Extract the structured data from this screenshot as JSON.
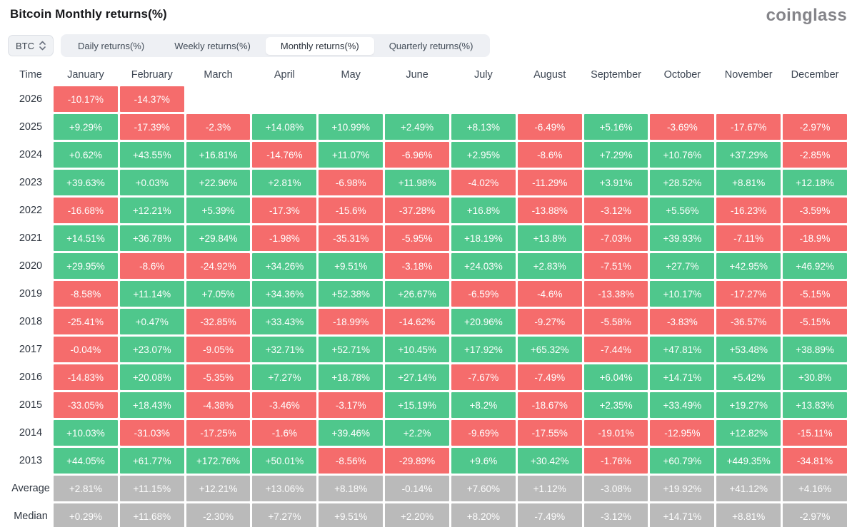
{
  "header": {
    "title": "Bitcoin Monthly returns(%)",
    "logo": "coinglass"
  },
  "controls": {
    "symbol_select": {
      "value": "BTC"
    },
    "tabs": [
      {
        "label": "Daily returns(%)",
        "active": false
      },
      {
        "label": "Weekly returns(%)",
        "active": false
      },
      {
        "label": "Monthly returns(%)",
        "active": true
      },
      {
        "label": "Quarterly returns(%)",
        "active": false
      }
    ]
  },
  "colors": {
    "positive": "#4fc78c",
    "negative": "#f56c6c",
    "summary": "#bababa"
  },
  "chart_data": {
    "type": "heatmap",
    "title": "Bitcoin Monthly returns(%)",
    "columns": [
      "Time",
      "January",
      "February",
      "March",
      "April",
      "May",
      "June",
      "July",
      "August",
      "September",
      "October",
      "November",
      "December"
    ],
    "rows": [
      {
        "label": "2026",
        "summary": false,
        "values": [
          "-10.17%",
          "-14.37%",
          "",
          "",
          "",
          "",
          "",
          "",
          "",
          "",
          "",
          ""
        ]
      },
      {
        "label": "2025",
        "summary": false,
        "values": [
          "+9.29%",
          "-17.39%",
          "-2.3%",
          "+14.08%",
          "+10.99%",
          "+2.49%",
          "+8.13%",
          "-6.49%",
          "+5.16%",
          "-3.69%",
          "-17.67%",
          "-2.97%"
        ]
      },
      {
        "label": "2024",
        "summary": false,
        "values": [
          "+0.62%",
          "+43.55%",
          "+16.81%",
          "-14.76%",
          "+11.07%",
          "-6.96%",
          "+2.95%",
          "-8.6%",
          "+7.29%",
          "+10.76%",
          "+37.29%",
          "-2.85%"
        ]
      },
      {
        "label": "2023",
        "summary": false,
        "values": [
          "+39.63%",
          "+0.03%",
          "+22.96%",
          "+2.81%",
          "-6.98%",
          "+11.98%",
          "-4.02%",
          "-11.29%",
          "+3.91%",
          "+28.52%",
          "+8.81%",
          "+12.18%"
        ]
      },
      {
        "label": "2022",
        "summary": false,
        "values": [
          "-16.68%",
          "+12.21%",
          "+5.39%",
          "-17.3%",
          "-15.6%",
          "-37.28%",
          "+16.8%",
          "-13.88%",
          "-3.12%",
          "+5.56%",
          "-16.23%",
          "-3.59%"
        ]
      },
      {
        "label": "2021",
        "summary": false,
        "values": [
          "+14.51%",
          "+36.78%",
          "+29.84%",
          "-1.98%",
          "-35.31%",
          "-5.95%",
          "+18.19%",
          "+13.8%",
          "-7.03%",
          "+39.93%",
          "-7.11%",
          "-18.9%"
        ]
      },
      {
        "label": "2020",
        "summary": false,
        "values": [
          "+29.95%",
          "-8.6%",
          "-24.92%",
          "+34.26%",
          "+9.51%",
          "-3.18%",
          "+24.03%",
          "+2.83%",
          "-7.51%",
          "+27.7%",
          "+42.95%",
          "+46.92%"
        ]
      },
      {
        "label": "2019",
        "summary": false,
        "values": [
          "-8.58%",
          "+11.14%",
          "+7.05%",
          "+34.36%",
          "+52.38%",
          "+26.67%",
          "-6.59%",
          "-4.6%",
          "-13.38%",
          "+10.17%",
          "-17.27%",
          "-5.15%"
        ]
      },
      {
        "label": "2018",
        "summary": false,
        "values": [
          "-25.41%",
          "+0.47%",
          "-32.85%",
          "+33.43%",
          "-18.99%",
          "-14.62%",
          "+20.96%",
          "-9.27%",
          "-5.58%",
          "-3.83%",
          "-36.57%",
          "-5.15%"
        ]
      },
      {
        "label": "2017",
        "summary": false,
        "values": [
          "-0.04%",
          "+23.07%",
          "-9.05%",
          "+32.71%",
          "+52.71%",
          "+10.45%",
          "+17.92%",
          "+65.32%",
          "-7.44%",
          "+47.81%",
          "+53.48%",
          "+38.89%"
        ]
      },
      {
        "label": "2016",
        "summary": false,
        "values": [
          "-14.83%",
          "+20.08%",
          "-5.35%",
          "+7.27%",
          "+18.78%",
          "+27.14%",
          "-7.67%",
          "-7.49%",
          "+6.04%",
          "+14.71%",
          "+5.42%",
          "+30.8%"
        ]
      },
      {
        "label": "2015",
        "summary": false,
        "values": [
          "-33.05%",
          "+18.43%",
          "-4.38%",
          "-3.46%",
          "-3.17%",
          "+15.19%",
          "+8.2%",
          "-18.67%",
          "+2.35%",
          "+33.49%",
          "+19.27%",
          "+13.83%"
        ]
      },
      {
        "label": "2014",
        "summary": false,
        "values": [
          "+10.03%",
          "-31.03%",
          "-17.25%",
          "-1.6%",
          "+39.46%",
          "+2.2%",
          "-9.69%",
          "-17.55%",
          "-19.01%",
          "-12.95%",
          "+12.82%",
          "-15.11%"
        ]
      },
      {
        "label": "2013",
        "summary": false,
        "values": [
          "+44.05%",
          "+61.77%",
          "+172.76%",
          "+50.01%",
          "-8.56%",
          "-29.89%",
          "+9.6%",
          "+30.42%",
          "-1.76%",
          "+60.79%",
          "+449.35%",
          "-34.81%"
        ]
      },
      {
        "label": "Average",
        "summary": true,
        "values": [
          "+2.81%",
          "+11.15%",
          "+12.21%",
          "+13.06%",
          "+8.18%",
          "-0.14%",
          "+7.60%",
          "+1.12%",
          "-3.08%",
          "+19.92%",
          "+41.12%",
          "+4.16%"
        ]
      },
      {
        "label": "Median",
        "summary": true,
        "values": [
          "+0.29%",
          "+11.68%",
          "-2.30%",
          "+7.27%",
          "+9.51%",
          "+2.20%",
          "+8.20%",
          "-7.49%",
          "-3.12%",
          "+14.71%",
          "+8.81%",
          "-2.97%"
        ]
      }
    ]
  }
}
